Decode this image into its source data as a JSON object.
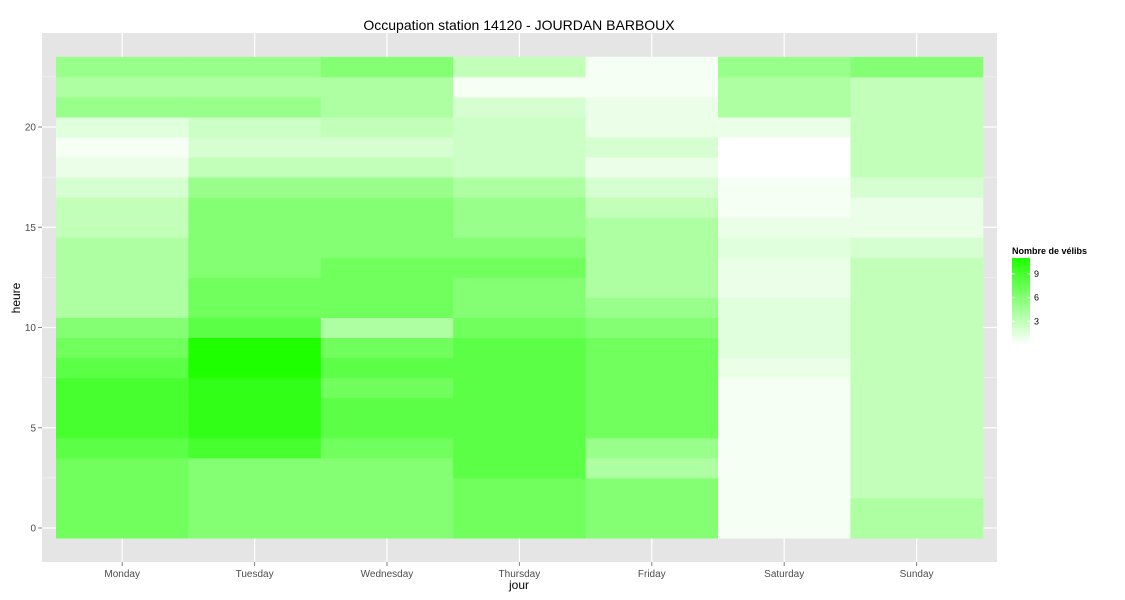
{
  "chart_data": {
    "type": "heatmap",
    "title": "Occupation station 14120 - JOURDAN BARBOUX",
    "xlabel": "jour",
    "ylabel": "heure",
    "x_categories": [
      "Monday",
      "Tuesday",
      "Wednesday",
      "Thursday",
      "Friday",
      "Saturday",
      "Sunday"
    ],
    "y_range": [
      0,
      23
    ],
    "y_ticks": [
      0,
      5,
      10,
      15,
      20
    ],
    "grid": true,
    "color_low": "#ffffff",
    "color_high": "#1eff00",
    "value_range": [
      0,
      11
    ],
    "legend": {
      "title": "Nombre de vélibs",
      "ticks": [
        3,
        6,
        9
      ],
      "placement": "right"
    },
    "series": [
      {
        "day": "Monday",
        "values": [
          7,
          7,
          7,
          7,
          8,
          9,
          9,
          9,
          8,
          7,
          6,
          4,
          4,
          4,
          4,
          3,
          3,
          2,
          1,
          0.5,
          1.5,
          5,
          4,
          5
        ]
      },
      {
        "day": "Tuesday",
        "values": [
          6,
          6,
          6,
          6,
          9,
          10,
          10,
          10,
          11,
          11,
          8,
          7,
          7,
          6,
          6,
          6,
          6,
          5,
          3,
          2,
          2.5,
          5,
          4,
          5
        ]
      },
      {
        "day": "Wednesday",
        "values": [
          6,
          6,
          6,
          6,
          7,
          8,
          8,
          7,
          8,
          7,
          4,
          7,
          7,
          7,
          6,
          6,
          6,
          5,
          3,
          2,
          3,
          4,
          4,
          6
        ]
      },
      {
        "day": "Thursday",
        "values": [
          7,
          7,
          7,
          8,
          8,
          8,
          8,
          8,
          8,
          8,
          7,
          6,
          6,
          7,
          6,
          5,
          5,
          4,
          2.5,
          2.5,
          2.5,
          2,
          0.5,
          3
        ]
      },
      {
        "day": "Friday",
        "values": [
          6,
          6,
          6,
          4,
          5,
          7,
          7,
          7,
          7,
          7,
          6,
          5,
          4,
          4,
          4,
          4,
          3,
          2,
          1,
          2,
          1,
          1,
          0.5,
          0.5
        ]
      },
      {
        "day": "Saturday",
        "values": [
          0.5,
          0.5,
          0.5,
          0.5,
          0.5,
          0.5,
          0.5,
          0.5,
          1,
          1.5,
          1.5,
          1.5,
          1,
          1,
          1.5,
          1,
          0.5,
          0.5,
          0,
          0,
          1,
          4,
          4,
          5
        ]
      },
      {
        "day": "Sunday",
        "values": [
          4,
          4,
          3,
          3,
          3,
          3,
          3,
          3,
          3,
          3,
          3,
          3,
          3,
          3,
          2,
          1,
          1,
          2,
          3,
          3,
          3,
          3,
          3,
          6
        ]
      }
    ]
  }
}
